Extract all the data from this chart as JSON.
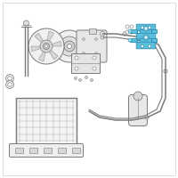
{
  "bg_color": "#ffffff",
  "border_color": "#d0d0d0",
  "line_color": "#7a7a7a",
  "highlight_color": "#5bbfdc",
  "highlight_dark": "#2a8ab0",
  "highlight_fill": "#a8dff0",
  "figsize": [
    2.0,
    2.0
  ],
  "dpi": 100
}
